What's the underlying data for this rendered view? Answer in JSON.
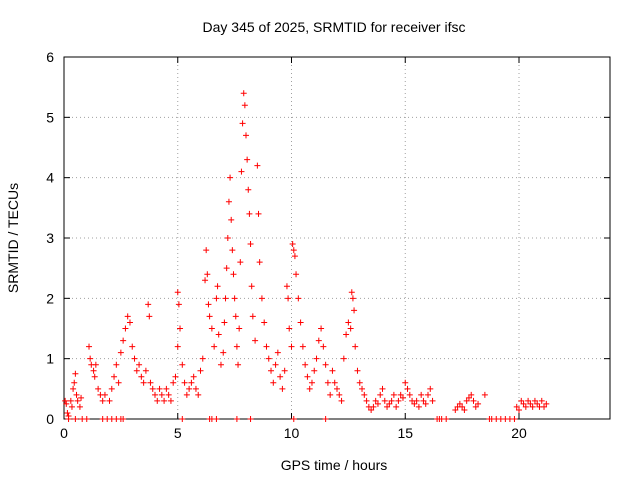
{
  "chart_data": {
    "type": "scatter",
    "title": "Day 345 of 2025, SRMTID for receiver ifsc",
    "xlabel": "GPS time / hours",
    "ylabel": "SRMTID / TECUs",
    "xlim": [
      0,
      24
    ],
    "ylim": [
      0,
      6
    ],
    "xticks": [
      0,
      5,
      10,
      15,
      20
    ],
    "yticks": [
      0,
      1,
      2,
      3,
      4,
      5,
      6
    ],
    "grid": true,
    "marker": "plus",
    "color": "#ff0000",
    "series": [
      {
        "name": "SRMTID",
        "points": [
          [
            0.05,
            0.3
          ],
          [
            0.1,
            0.25
          ],
          [
            0.15,
            0.1
          ],
          [
            0.2,
            0.05
          ],
          [
            0.3,
            0.3
          ],
          [
            0.35,
            0.2
          ],
          [
            0.4,
            0.5
          ],
          [
            0.45,
            0.6
          ],
          [
            0.5,
            0.75
          ],
          [
            0.55,
            0.4
          ],
          [
            0.6,
            0.3
          ],
          [
            0.7,
            0.2
          ],
          [
            0.75,
            0.35
          ],
          [
            1.1,
            1.2
          ],
          [
            1.15,
            1.0
          ],
          [
            1.2,
            0.9
          ],
          [
            1.3,
            0.8
          ],
          [
            1.35,
            0.7
          ],
          [
            1.4,
            0.9
          ],
          [
            1.5,
            0.5
          ],
          [
            1.6,
            0.4
          ],
          [
            1.7,
            0.3
          ],
          [
            1.8,
            0.4
          ],
          [
            2.0,
            0.3
          ],
          [
            2.1,
            0.5
          ],
          [
            2.2,
            0.7
          ],
          [
            2.3,
            0.9
          ],
          [
            2.4,
            0.6
          ],
          [
            2.5,
            1.1
          ],
          [
            2.6,
            1.3
          ],
          [
            2.7,
            1.5
          ],
          [
            2.8,
            1.7
          ],
          [
            2.9,
            1.6
          ],
          [
            3.0,
            1.2
          ],
          [
            3.1,
            1.0
          ],
          [
            3.2,
            0.8
          ],
          [
            3.3,
            0.9
          ],
          [
            3.4,
            0.7
          ],
          [
            3.5,
            0.6
          ],
          [
            3.6,
            0.8
          ],
          [
            3.7,
            1.9
          ],
          [
            3.75,
            1.7
          ],
          [
            3.8,
            0.6
          ],
          [
            3.9,
            0.5
          ],
          [
            4.0,
            0.4
          ],
          [
            4.1,
            0.3
          ],
          [
            4.2,
            0.5
          ],
          [
            4.3,
            0.4
          ],
          [
            4.4,
            0.3
          ],
          [
            4.5,
            0.5
          ],
          [
            4.6,
            0.4
          ],
          [
            4.7,
            0.3
          ],
          [
            4.8,
            0.6
          ],
          [
            4.9,
            0.7
          ],
          [
            5.0,
            1.2
          ],
          [
            5.0,
            2.1
          ],
          [
            5.05,
            1.9
          ],
          [
            5.1,
            1.5
          ],
          [
            5.2,
            0.9
          ],
          [
            5.3,
            0.6
          ],
          [
            5.4,
            0.4
          ],
          [
            5.5,
            0.5
          ],
          [
            5.6,
            0.6
          ],
          [
            5.7,
            0.7
          ],
          [
            5.8,
            0.5
          ],
          [
            5.9,
            0.4
          ],
          [
            6.0,
            0.8
          ],
          [
            6.1,
            1.0
          ],
          [
            6.2,
            2.3
          ],
          [
            6.25,
            2.8
          ],
          [
            6.3,
            2.4
          ],
          [
            6.35,
            1.9
          ],
          [
            6.4,
            1.7
          ],
          [
            6.5,
            1.5
          ],
          [
            6.6,
            1.2
          ],
          [
            6.7,
            2.0
          ],
          [
            6.75,
            2.2
          ],
          [
            6.8,
            1.4
          ],
          [
            6.9,
            0.9
          ],
          [
            7.0,
            1.1
          ],
          [
            7.05,
            1.6
          ],
          [
            7.1,
            2.0
          ],
          [
            7.15,
            2.5
          ],
          [
            7.2,
            3.0
          ],
          [
            7.25,
            3.6
          ],
          [
            7.3,
            4.0
          ],
          [
            7.35,
            3.3
          ],
          [
            7.4,
            2.8
          ],
          [
            7.45,
            2.4
          ],
          [
            7.5,
            2.0
          ],
          [
            7.55,
            1.7
          ],
          [
            7.6,
            1.2
          ],
          [
            7.65,
            0.9
          ],
          [
            7.7,
            1.5
          ],
          [
            7.75,
            2.6
          ],
          [
            7.8,
            4.1
          ],
          [
            7.85,
            4.9
          ],
          [
            7.9,
            5.4
          ],
          [
            7.95,
            5.2
          ],
          [
            8.0,
            4.7
          ],
          [
            8.05,
            4.3
          ],
          [
            8.1,
            3.8
          ],
          [
            8.15,
            3.4
          ],
          [
            8.2,
            2.9
          ],
          [
            8.25,
            2.2
          ],
          [
            8.3,
            1.7
          ],
          [
            8.4,
            1.3
          ],
          [
            8.5,
            4.2
          ],
          [
            8.55,
            3.4
          ],
          [
            8.6,
            2.6
          ],
          [
            8.7,
            2.0
          ],
          [
            8.8,
            1.6
          ],
          [
            8.9,
            1.2
          ],
          [
            9.0,
            1.0
          ],
          [
            9.1,
            0.8
          ],
          [
            9.2,
            0.6
          ],
          [
            9.3,
            0.9
          ],
          [
            9.4,
            1.1
          ],
          [
            9.5,
            0.7
          ],
          [
            9.6,
            0.5
          ],
          [
            9.7,
            0.8
          ],
          [
            9.8,
            2.2
          ],
          [
            9.85,
            2.0
          ],
          [
            9.9,
            1.5
          ],
          [
            10.0,
            1.2
          ],
          [
            10.05,
            2.9
          ],
          [
            10.1,
            2.8
          ],
          [
            10.15,
            2.7
          ],
          [
            10.2,
            2.4
          ],
          [
            10.3,
            2.0
          ],
          [
            10.4,
            1.6
          ],
          [
            10.5,
            1.2
          ],
          [
            10.6,
            0.9
          ],
          [
            10.7,
            0.7
          ],
          [
            10.8,
            0.5
          ],
          [
            10.9,
            0.6
          ],
          [
            11.0,
            0.8
          ],
          [
            11.1,
            1.0
          ],
          [
            11.2,
            1.3
          ],
          [
            11.3,
            1.5
          ],
          [
            11.4,
            1.2
          ],
          [
            11.5,
            0.9
          ],
          [
            11.6,
            0.6
          ],
          [
            11.7,
            0.4
          ],
          [
            11.8,
            0.8
          ],
          [
            11.9,
            0.6
          ],
          [
            12.0,
            0.5
          ],
          [
            12.1,
            0.4
          ],
          [
            12.2,
            0.3
          ],
          [
            12.3,
            1.0
          ],
          [
            12.4,
            1.4
          ],
          [
            12.5,
            1.6
          ],
          [
            12.6,
            1.5
          ],
          [
            12.65,
            2.1
          ],
          [
            12.7,
            2.0
          ],
          [
            12.75,
            1.8
          ],
          [
            12.8,
            1.2
          ],
          [
            12.9,
            0.8
          ],
          [
            13.0,
            0.6
          ],
          [
            13.1,
            0.5
          ],
          [
            13.2,
            0.4
          ],
          [
            13.3,
            0.3
          ],
          [
            13.4,
            0.2
          ],
          [
            13.5,
            0.15
          ],
          [
            13.6,
            0.2
          ],
          [
            13.7,
            0.3
          ],
          [
            13.8,
            0.25
          ],
          [
            13.9,
            0.4
          ],
          [
            14.0,
            0.5
          ],
          [
            14.1,
            0.3
          ],
          [
            14.2,
            0.2
          ],
          [
            14.3,
            0.25
          ],
          [
            14.4,
            0.3
          ],
          [
            14.5,
            0.4
          ],
          [
            14.6,
            0.2
          ],
          [
            14.7,
            0.3
          ],
          [
            14.8,
            0.4
          ],
          [
            14.9,
            0.35
          ],
          [
            15.0,
            0.6
          ],
          [
            15.1,
            0.5
          ],
          [
            15.2,
            0.4
          ],
          [
            15.3,
            0.3
          ],
          [
            15.4,
            0.25
          ],
          [
            15.5,
            0.3
          ],
          [
            15.6,
            0.2
          ],
          [
            15.7,
            0.4
          ],
          [
            15.8,
            0.3
          ],
          [
            15.9,
            0.25
          ],
          [
            16.0,
            0.4
          ],
          [
            16.1,
            0.5
          ],
          [
            16.2,
            0.3
          ],
          [
            17.2,
            0.15
          ],
          [
            17.3,
            0.2
          ],
          [
            17.4,
            0.25
          ],
          [
            17.5,
            0.2
          ],
          [
            17.6,
            0.15
          ],
          [
            17.7,
            0.3
          ],
          [
            17.8,
            0.35
          ],
          [
            17.9,
            0.4
          ],
          [
            18.0,
            0.3
          ],
          [
            18.1,
            0.2
          ],
          [
            18.2,
            0.25
          ],
          [
            18.5,
            0.4
          ],
          [
            19.9,
            0.2
          ],
          [
            20.0,
            0.15
          ],
          [
            20.1,
            0.3
          ],
          [
            20.2,
            0.25
          ],
          [
            20.3,
            0.2
          ],
          [
            20.4,
            0.3
          ],
          [
            20.5,
            0.25
          ],
          [
            20.6,
            0.2
          ],
          [
            20.7,
            0.3
          ],
          [
            20.8,
            0.25
          ],
          [
            20.9,
            0.2
          ],
          [
            21.0,
            0.3
          ],
          [
            21.1,
            0.2
          ],
          [
            21.2,
            0.25
          ],
          [
            0.2,
            0
          ],
          [
            0.5,
            0
          ],
          [
            0.8,
            0
          ],
          [
            1.0,
            0
          ],
          [
            1.7,
            0
          ],
          [
            1.9,
            0
          ],
          [
            2.1,
            0
          ],
          [
            2.3,
            0
          ],
          [
            2.5,
            0
          ],
          [
            2.6,
            0
          ],
          [
            5.2,
            0
          ],
          [
            6.4,
            0
          ],
          [
            6.5,
            0
          ],
          [
            6.7,
            0
          ],
          [
            7.6,
            0
          ],
          [
            8.2,
            0
          ],
          [
            10.1,
            0
          ],
          [
            11.5,
            0
          ],
          [
            16.4,
            0
          ],
          [
            16.5,
            0
          ],
          [
            16.6,
            0
          ],
          [
            16.8,
            0
          ],
          [
            18.7,
            0
          ],
          [
            18.8,
            0
          ],
          [
            19.0,
            0
          ],
          [
            19.2,
            0
          ],
          [
            19.4,
            0
          ],
          [
            19.6,
            0
          ],
          [
            19.8,
            0
          ]
        ]
      }
    ]
  }
}
